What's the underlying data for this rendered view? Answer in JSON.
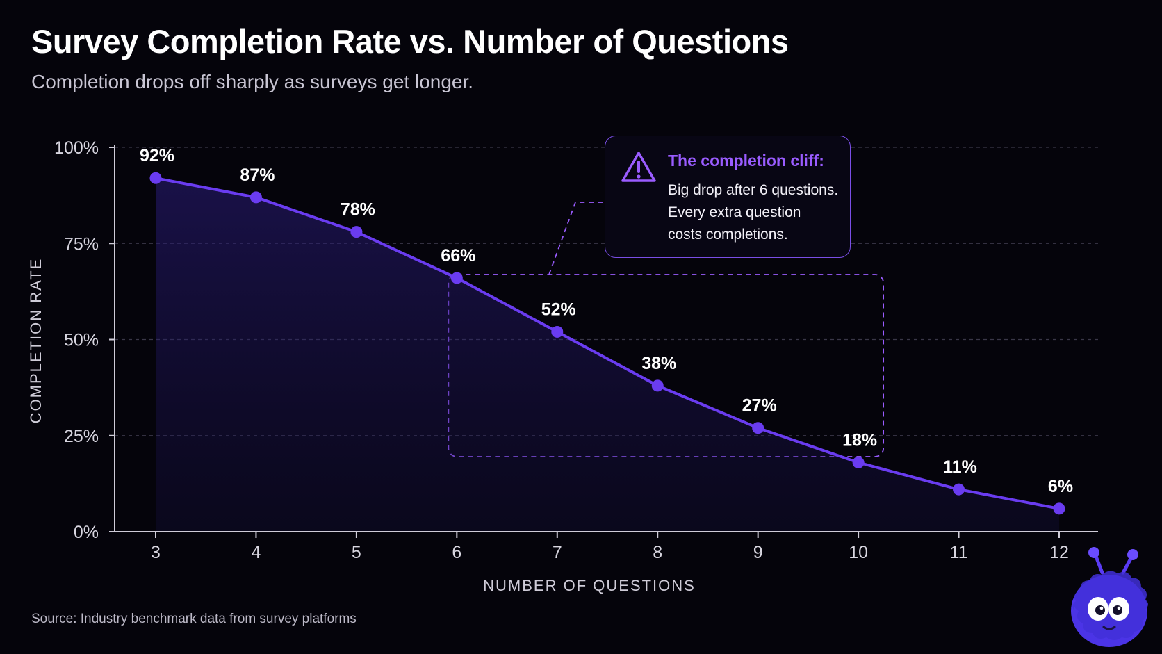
{
  "header": {
    "title": "Survey Completion Rate vs. Number of Questions",
    "subtitle": "Completion drops off sharply as surveys get longer."
  },
  "footer": {
    "source": "Source: Industry benchmark data from survey platforms"
  },
  "callout": {
    "icon": "warning-triangle-icon",
    "heading": "The completion cliff:",
    "lines": [
      "Big drop after 6 questions.",
      "Every extra question",
      "costs completions."
    ],
    "highlight_range": [
      6,
      10
    ]
  },
  "colors": {
    "line": "#6a3cf0",
    "accent": "#9a5cff",
    "background": "#05040b"
  },
  "chart_data": {
    "type": "line",
    "xlabel": "NUMBER OF QUESTIONS",
    "ylabel": "COMPLETION RATE",
    "x": [
      3,
      4,
      5,
      6,
      7,
      8,
      9,
      10,
      11,
      12
    ],
    "values": [
      92,
      87,
      78,
      66,
      52,
      38,
      27,
      18,
      11,
      6
    ],
    "data_labels": [
      "92%",
      "87%",
      "78%",
      "66%",
      "52%",
      "38%",
      "27%",
      "18%",
      "11%",
      "6%"
    ],
    "ylim": [
      0,
      100
    ],
    "y_ticks": [
      0,
      25,
      50,
      75,
      100
    ],
    "y_tick_labels": [
      "0%",
      "25%",
      "50%",
      "75%",
      "100%"
    ],
    "x_tick_labels": [
      "3",
      "4",
      "5",
      "6",
      "7",
      "8",
      "9",
      "10",
      "11",
      "12"
    ],
    "grid": "horizontal dashed",
    "fill_under_line": true
  }
}
